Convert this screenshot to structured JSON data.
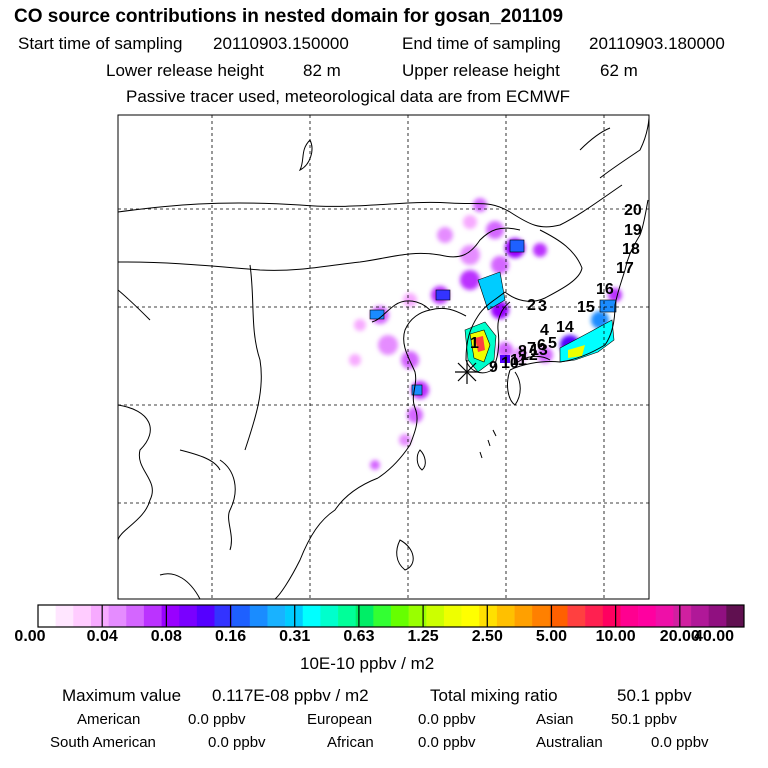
{
  "chart_data": {
    "type": "heatmap",
    "title": "CO  source contributions in nested domain for gosan_201109",
    "header": {
      "start_label": "Start time of sampling",
      "start_value": "20110903.150000",
      "end_label": "End time of sampling",
      "end_value": "20110903.180000",
      "lower_label": "Lower release height",
      "lower_value": "82 m",
      "upper_label": "Upper release height",
      "upper_value": "62 m",
      "note": "Passive tracer used, meteorological data are from ECMWF"
    },
    "trajectory_labels": [
      "1",
      "2",
      "3",
      "4",
      "5",
      "6",
      "7",
      "8",
      "9",
      "10",
      "11",
      "12",
      "13",
      "14",
      "15",
      "16",
      "17",
      "18",
      "19",
      "20"
    ],
    "colorbar": {
      "labels": [
        "0.00",
        "0.04",
        "0.08",
        "0.16",
        "0.31",
        "0.63",
        "1.25",
        "2.50",
        "5.00",
        "10.00",
        "20.00",
        "40.00"
      ],
      "colors": [
        "#ffffff",
        "#ffe6ff",
        "#ffccff",
        "#f7aaff",
        "#e58cff",
        "#d466ff",
        "#bb33ff",
        "#9900ff",
        "#7a00ff",
        "#5500ff",
        "#3333ff",
        "#1e60ff",
        "#1a8cff",
        "#19b2ff",
        "#00ccff",
        "#00ffff",
        "#00ffcc",
        "#00ff99",
        "#00ee66",
        "#33ff33",
        "#66ff00",
        "#99ff00",
        "#ccff00",
        "#eeff00",
        "#ffff00",
        "#ffe000",
        "#ffc000",
        "#ffa000",
        "#ff8000",
        "#ff6000",
        "#ff4040",
        "#ff2050",
        "#ff0060",
        "#ff0090",
        "#ff00a0",
        "#ee10a8",
        "#d020a0",
        "#b01898",
        "#901080",
        "#601050"
      ],
      "unit": "10E-10 ppbv / m2"
    },
    "summary": {
      "max_label": "Maximum value",
      "max_value": "0.117E-08 ppbv / m2",
      "total_label": "Total mixing ratio",
      "total_value": "50.1 ppbv"
    },
    "regions": [
      {
        "name": "American",
        "value": "0.0 ppbv"
      },
      {
        "name": "European",
        "value": "0.0 ppbv"
      },
      {
        "name": "Asian",
        "value": "50.1 ppbv"
      },
      {
        "name": "South American",
        "value": "0.0 ppbv"
      },
      {
        "name": "African",
        "value": "0.0 ppbv"
      },
      {
        "name": "Australian",
        "value": "0.0 ppbv"
      }
    ]
  }
}
